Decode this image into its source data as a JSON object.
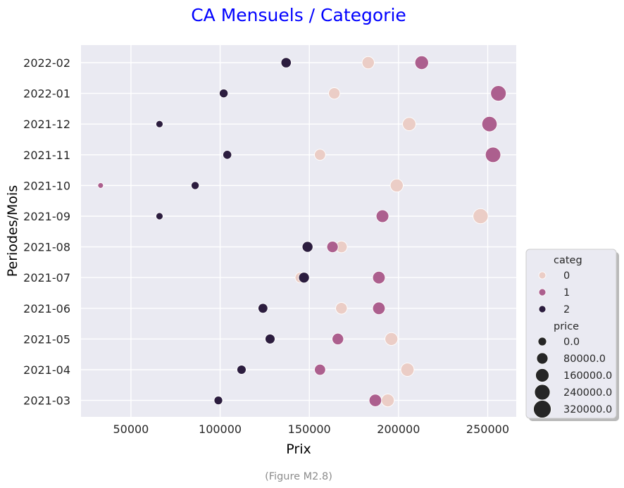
{
  "chart_data": {
    "type": "scatter",
    "title": "CA Mensuels / Categorie",
    "xlabel": "Prix",
    "ylabel": "Periodes/Mois",
    "xlim": [
      22000,
      266000
    ],
    "x_ticks": [
      50000,
      100000,
      150000,
      200000,
      250000
    ],
    "categories": [
      "2022-02",
      "2022-01",
      "2021-12",
      "2021-11",
      "2021-10",
      "2021-09",
      "2021-08",
      "2021-07",
      "2021-06",
      "2021-05",
      "2021-04",
      "2021-03"
    ],
    "grid": true,
    "legend_position": "right",
    "hue_field": "categ",
    "size_field": "price",
    "series": [
      {
        "name": "0",
        "color": "#ebcdc6",
        "points": [
          {
            "period": "2022-02",
            "x": 183000
          },
          {
            "period": "2022-01",
            "x": 164000
          },
          {
            "period": "2021-12",
            "x": 206000
          },
          {
            "period": "2021-11",
            "x": 156000
          },
          {
            "period": "2021-10",
            "x": 199000
          },
          {
            "period": "2021-09",
            "x": 246000
          },
          {
            "period": "2021-08",
            "x": 168000
          },
          {
            "period": "2021-07",
            "x": 145000
          },
          {
            "period": "2021-06",
            "x": 168000
          },
          {
            "period": "2021-05",
            "x": 196000
          },
          {
            "period": "2021-04",
            "x": 205000
          },
          {
            "period": "2021-03",
            "x": 194000
          }
        ]
      },
      {
        "name": "1",
        "color": "#ac5f8e",
        "points": [
          {
            "period": "2022-02",
            "x": 213000
          },
          {
            "period": "2022-01",
            "x": 256000
          },
          {
            "period": "2021-12",
            "x": 251000
          },
          {
            "period": "2021-11",
            "x": 253000
          },
          {
            "period": "2021-10",
            "x": 33000
          },
          {
            "period": "2021-09",
            "x": 191000
          },
          {
            "period": "2021-08",
            "x": 163000
          },
          {
            "period": "2021-07",
            "x": 189000
          },
          {
            "period": "2021-06",
            "x": 189000
          },
          {
            "period": "2021-05",
            "x": 166000
          },
          {
            "period": "2021-04",
            "x": 156000
          },
          {
            "period": "2021-03",
            "x": 187000
          }
        ]
      },
      {
        "name": "2",
        "color": "#2c1d3f",
        "points": [
          {
            "period": "2022-02",
            "x": 137000
          },
          {
            "period": "2022-01",
            "x": 102000
          },
          {
            "period": "2021-12",
            "x": 66000
          },
          {
            "period": "2021-11",
            "x": 104000
          },
          {
            "period": "2021-10",
            "x": 86000
          },
          {
            "period": "2021-09",
            "x": 66000
          },
          {
            "period": "2021-08",
            "x": 149000
          },
          {
            "period": "2021-07",
            "x": 147000
          },
          {
            "period": "2021-06",
            "x": 124000
          },
          {
            "period": "2021-05",
            "x": 128000
          },
          {
            "period": "2021-04",
            "x": 112000
          },
          {
            "period": "2021-03",
            "x": 99000
          }
        ]
      }
    ],
    "size_legend": [
      "0.0",
      "80000.0",
      "160000.0",
      "240000.0",
      "320000.0"
    ],
    "size_legend_values": [
      0,
      80000,
      160000,
      240000,
      320000
    ],
    "legend_titles": {
      "hue": "categ",
      "size": "price"
    },
    "caption": "(Figure M2.8)"
  },
  "colors": {
    "title": "#0000ff",
    "plot_bg": "#eaeaf2",
    "grid": "#ffffff"
  }
}
